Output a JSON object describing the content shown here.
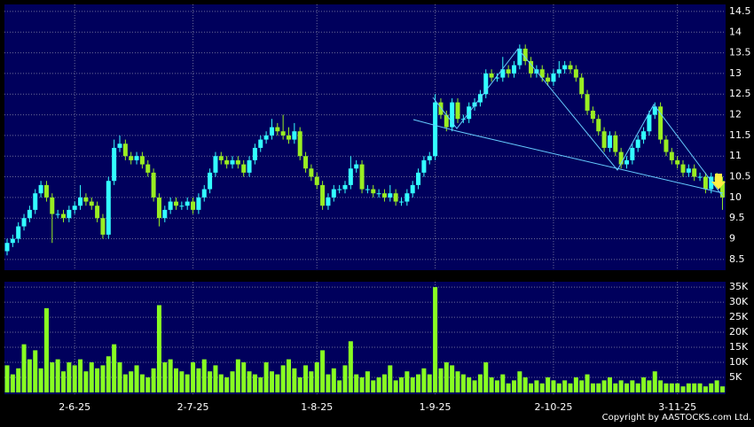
{
  "chart_data": [
    {
      "type": "candlestick",
      "up_color": "#33ffff",
      "down_color": "#99ee22",
      "ylim": [
        8.24,
        14.67
      ],
      "yticks": [
        8.5,
        9,
        9.5,
        10,
        10.5,
        11,
        11.5,
        12,
        12.5,
        13,
        13.5,
        14,
        14.5
      ],
      "grid": true,
      "open": [
        8.7,
        8.9,
        9.0,
        9.3,
        9.5,
        9.7,
        10.1,
        10.3,
        10.0,
        9.6,
        9.6,
        9.5,
        9.7,
        9.8,
        10.0,
        9.9,
        9.8,
        9.5,
        9.1,
        10.4,
        11.2,
        11.3,
        11.0,
        10.9,
        11.0,
        10.8,
        10.6,
        10.0,
        9.5,
        9.7,
        9.9,
        9.8,
        9.8,
        9.9,
        9.7,
        10.0,
        10.2,
        10.6,
        11.0,
        10.9,
        10.8,
        10.9,
        10.8,
        10.6,
        10.9,
        11.2,
        11.4,
        11.5,
        11.7,
        11.6,
        11.5,
        11.4,
        11.6,
        11.0,
        10.7,
        10.5,
        10.3,
        9.8,
        10.0,
        10.2,
        10.2,
        10.3,
        10.7,
        10.8,
        10.2,
        10.2,
        10.1,
        10.1,
        10.0,
        10.1,
        9.9,
        9.9,
        10.1,
        10.3,
        10.6,
        10.9,
        11.0,
        12.3,
        12.0,
        11.7,
        12.3,
        11.9,
        11.9,
        12.2,
        12.3,
        12.5,
        13.0,
        12.9,
        12.9,
        13.1,
        13.0,
        13.2,
        13.6,
        13.3,
        13.0,
        13.1,
        12.9,
        12.8,
        13.0,
        13.1,
        13.2,
        13.1,
        12.9,
        12.5,
        12.1,
        11.9,
        11.6,
        11.2,
        11.5,
        11.1,
        10.8,
        10.9,
        11.2,
        11.4,
        11.6,
        12.0,
        12.2,
        11.4,
        11.1,
        10.9,
        10.8,
        10.6,
        10.7,
        10.5,
        10.5,
        10.2,
        10.5,
        10.4
      ],
      "high": [
        9.0,
        9.1,
        9.4,
        9.6,
        9.8,
        10.2,
        10.4,
        10.4,
        10.1,
        9.7,
        9.7,
        9.8,
        9.9,
        10.3,
        10.1,
        10.0,
        9.9,
        9.6,
        10.5,
        11.4,
        11.5,
        11.4,
        11.1,
        11.1,
        11.1,
        10.9,
        10.7,
        10.1,
        9.8,
        10.0,
        10.0,
        9.9,
        10.0,
        10.0,
        10.1,
        10.3,
        10.7,
        11.1,
        11.1,
        11.0,
        11.0,
        11.0,
        10.9,
        11.0,
        11.3,
        11.5,
        11.6,
        11.9,
        11.8,
        12.0,
        11.7,
        11.8,
        11.7,
        11.1,
        10.8,
        10.6,
        10.4,
        10.1,
        10.3,
        10.3,
        10.4,
        11.0,
        10.9,
        10.9,
        10.3,
        10.3,
        10.2,
        10.2,
        10.3,
        10.2,
        10.0,
        10.2,
        10.4,
        10.7,
        11.0,
        11.1,
        12.5,
        12.4,
        12.1,
        12.4,
        12.4,
        12.0,
        12.3,
        12.4,
        12.6,
        13.1,
        13.1,
        13.0,
        13.4,
        13.2,
        13.3,
        13.7,
        13.7,
        13.4,
        13.2,
        13.2,
        13.0,
        13.1,
        13.3,
        13.3,
        13.3,
        13.2,
        13.0,
        12.6,
        12.2,
        12.0,
        11.7,
        11.6,
        11.6,
        11.2,
        11.0,
        11.3,
        11.5,
        11.7,
        12.1,
        12.3,
        12.3,
        11.5,
        11.2,
        11.0,
        10.9,
        10.8,
        10.8,
        10.6,
        10.6,
        10.6,
        10.6,
        10.5
      ],
      "low": [
        8.6,
        8.8,
        8.9,
        9.2,
        9.4,
        9.6,
        10.0,
        9.9,
        8.9,
        9.5,
        9.4,
        9.4,
        9.6,
        9.7,
        9.8,
        9.7,
        9.4,
        9.0,
        9.0,
        10.3,
        11.1,
        10.9,
        10.8,
        10.8,
        10.7,
        10.5,
        9.9,
        9.3,
        9.4,
        9.6,
        9.7,
        9.7,
        9.7,
        9.6,
        9.6,
        9.9,
        10.1,
        10.5,
        10.8,
        10.7,
        10.7,
        10.7,
        10.5,
        10.5,
        10.8,
        11.1,
        11.3,
        11.4,
        11.5,
        11.4,
        11.3,
        11.3,
        10.9,
        10.6,
        10.4,
        10.2,
        9.7,
        9.7,
        9.9,
        10.1,
        10.1,
        10.2,
        10.6,
        10.1,
        10.1,
        10.0,
        10.0,
        9.9,
        9.9,
        9.8,
        9.8,
        9.8,
        10.0,
        10.2,
        10.5,
        10.8,
        10.9,
        11.9,
        11.6,
        11.6,
        11.8,
        11.8,
        11.8,
        12.1,
        12.2,
        12.4,
        12.8,
        12.8,
        12.8,
        12.9,
        12.9,
        13.1,
        13.2,
        12.9,
        12.9,
        12.8,
        12.7,
        12.7,
        12.9,
        13.0,
        13.0,
        12.8,
        12.4,
        12.0,
        11.8,
        11.5,
        11.1,
        11.1,
        11.0,
        10.7,
        10.7,
        10.8,
        11.1,
        11.3,
        11.5,
        11.9,
        11.3,
        11.0,
        10.8,
        10.7,
        10.5,
        10.5,
        10.4,
        10.4,
        10.1,
        10.1,
        10.3,
        9.7
      ],
      "close": [
        8.9,
        9.0,
        9.3,
        9.5,
        9.7,
        10.1,
        10.3,
        10.0,
        9.6,
        9.6,
        9.5,
        9.7,
        9.8,
        10.0,
        9.9,
        9.8,
        9.5,
        9.1,
        10.4,
        11.2,
        11.3,
        11.0,
        10.9,
        11.0,
        10.8,
        10.6,
        10.0,
        9.5,
        9.7,
        9.9,
        9.8,
        9.8,
        9.9,
        9.7,
        10.0,
        10.2,
        10.6,
        11.0,
        10.9,
        10.8,
        10.9,
        10.8,
        10.6,
        10.9,
        11.2,
        11.4,
        11.5,
        11.7,
        11.6,
        11.5,
        11.4,
        11.6,
        11.0,
        10.7,
        10.5,
        10.3,
        9.8,
        10.0,
        10.2,
        10.2,
        10.3,
        10.7,
        10.8,
        10.2,
        10.2,
        10.1,
        10.1,
        10.0,
        10.1,
        9.9,
        9.9,
        10.1,
        10.3,
        10.6,
        10.9,
        11.0,
        12.3,
        12.0,
        11.7,
        12.3,
        11.9,
        11.9,
        12.2,
        12.3,
        12.5,
        13.0,
        12.9,
        12.9,
        13.1,
        13.0,
        13.2,
        13.6,
        13.3,
        13.0,
        13.1,
        12.9,
        12.8,
        13.0,
        13.1,
        13.2,
        13.1,
        12.9,
        12.5,
        12.1,
        11.9,
        11.6,
        11.2,
        11.5,
        11.1,
        10.8,
        10.9,
        11.2,
        11.4,
        11.6,
        12.0,
        12.2,
        11.4,
        11.1,
        10.9,
        10.8,
        10.6,
        10.7,
        10.5,
        10.5,
        10.2,
        10.5,
        10.4,
        10.0
      ]
    },
    {
      "type": "bar",
      "color": "#88ff22",
      "ylim": [
        -600,
        36800
      ],
      "yticks": [
        {
          "value": 5000,
          "label": "5K"
        },
        {
          "value": 10000,
          "label": "10K"
        },
        {
          "value": 15000,
          "label": "15K"
        },
        {
          "value": 20000,
          "label": "20K"
        },
        {
          "value": 25000,
          "label": "25K"
        },
        {
          "value": 30000,
          "label": "30K"
        },
        {
          "value": 35000,
          "label": "35K"
        }
      ],
      "grid": true,
      "categories": [
        null,
        null,
        null,
        null,
        null,
        null,
        null,
        null,
        null,
        null,
        null,
        null,
        "2-6-25",
        null,
        null,
        null,
        null,
        null,
        null,
        null,
        null,
        null,
        null,
        null,
        null,
        null,
        null,
        null,
        null,
        null,
        null,
        null,
        null,
        "2-7-25",
        null,
        null,
        null,
        null,
        null,
        null,
        null,
        null,
        null,
        null,
        null,
        null,
        null,
        null,
        null,
        null,
        null,
        null,
        null,
        null,
        null,
        "1-8-25",
        null,
        null,
        null,
        null,
        null,
        null,
        null,
        null,
        null,
        null,
        null,
        null,
        null,
        null,
        null,
        null,
        null,
        null,
        null,
        null,
        "1-9-25",
        null,
        null,
        null,
        null,
        null,
        null,
        null,
        null,
        null,
        null,
        null,
        null,
        null,
        null,
        null,
        null,
        null,
        null,
        null,
        null,
        "2-10-25",
        null,
        null,
        null,
        null,
        null,
        null,
        null,
        null,
        null,
        null,
        null,
        null,
        null,
        null,
        null,
        null,
        null,
        null,
        null,
        null,
        null,
        "3-11-25",
        null,
        null,
        null,
        null,
        null,
        null,
        null,
        null
      ],
      "values": [
        9000,
        6000,
        8000,
        16000,
        11000,
        14000,
        8000,
        28000,
        10000,
        11000,
        7000,
        10000,
        9000,
        11000,
        7000,
        10000,
        8000,
        9000,
        12000,
        16000,
        10000,
        6000,
        7000,
        9000,
        6000,
        5000,
        8000,
        29000,
        10000,
        11000,
        8000,
        7000,
        6000,
        10000,
        8000,
        11000,
        7000,
        9000,
        6000,
        5000,
        7000,
        11000,
        10000,
        7000,
        6000,
        5000,
        10000,
        7000,
        6000,
        9000,
        11000,
        8000,
        5000,
        9000,
        7000,
        10000,
        14000,
        6000,
        8000,
        4000,
        9000,
        17000,
        6000,
        5000,
        7000,
        4000,
        5000,
        6000,
        9000,
        4000,
        5000,
        7000,
        5000,
        6000,
        8000,
        6000,
        35000,
        8000,
        10000,
        9000,
        7000,
        6000,
        5000,
        4000,
        6000,
        10000,
        5000,
        4000,
        6000,
        3000,
        4000,
        7000,
        5000,
        3000,
        4000,
        3000,
        5000,
        4000,
        3000,
        4000,
        3000,
        5000,
        4000,
        6000,
        3000,
        3000,
        4000,
        5000,
        3000,
        4000,
        3000,
        4000,
        3000,
        5000,
        4000,
        7000,
        4000,
        3000,
        3000,
        3000,
        2000,
        3000,
        3000,
        3000,
        2000,
        3000,
        4000,
        2000
      ]
    }
  ],
  "copyright": "Copyright by AASTOCKS.com Ltd."
}
